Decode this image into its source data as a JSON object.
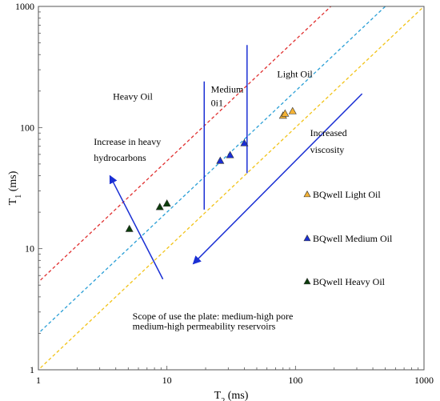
{
  "chart_data": {
    "type": "scatter",
    "xscale": "log",
    "yscale": "log",
    "xlim": [
      1,
      1000
    ],
    "ylim": [
      1,
      1000
    ],
    "grid": false,
    "legend_position": "right",
    "xlabel_base": "T",
    "xlabel_sub": "2",
    "xlabel_unit": " (ms)",
    "ylabel_base": "T",
    "ylabel_sub": "1",
    "ylabel_unit": " (ms)",
    "xticks": [
      {
        "value": 1,
        "label": "1"
      },
      {
        "value": 10,
        "label": "10"
      },
      {
        "value": 100,
        "label": "100"
      },
      {
        "value": 1000,
        "label": "1000"
      }
    ],
    "yticks": [
      {
        "value": 1,
        "label": "1"
      },
      {
        "value": 10,
        "label": "10"
      },
      {
        "value": 100,
        "label": "100"
      },
      {
        "value": 1000,
        "label": "1000"
      }
    ],
    "series": [
      {
        "name": "BQwell Light Oil",
        "color": "#f4b234",
        "points": [
          [
            80,
            125
          ],
          [
            83,
            130
          ],
          [
            95,
            136
          ]
        ]
      },
      {
        "name": "BQwell Medium Oil",
        "color": "#1a2fd4",
        "points": [
          [
            26,
            53
          ],
          [
            31,
            59
          ],
          [
            40,
            74
          ]
        ]
      },
      {
        "name": "BQwell Heavy Oil",
        "color": "#0b3d0b",
        "points": [
          [
            5.1,
            14.5
          ],
          [
            8.8,
            22
          ],
          [
            10,
            23.5
          ]
        ]
      }
    ],
    "ratio_lines": [
      {
        "ratio": 5.3,
        "color": "#e03030"
      },
      {
        "ratio": 2.0,
        "color": "#2a9fd6"
      },
      {
        "ratio": 1.0,
        "color": "#f2c318"
      }
    ],
    "boundary_lines": [
      {
        "x": [
          19.5,
          19.5
        ],
        "y": [
          21,
          240
        ],
        "color": "#1a2fd4"
      },
      {
        "x": [
          42,
          42
        ],
        "y": [
          42,
          480
        ],
        "color": "#1a2fd4"
      }
    ],
    "arrows": [
      {
        "from": [
          9.3,
          5.6
        ],
        "to": [
          3.6,
          40
        ],
        "color": "#1a2fd4"
      },
      {
        "from": [
          330,
          190
        ],
        "to": [
          16,
          7.5
        ],
        "color": "#1a2fd4"
      }
    ],
    "annotations": [
      {
        "text": "Light Oil",
        "x": 72,
        "y": 260
      },
      {
        "text": "Heavy Oil",
        "x": 3.8,
        "y": 170
      },
      {
        "text": "Medium",
        "x": 22,
        "y": 195
      },
      {
        "text": "0i1",
        "x": 22,
        "y": 150
      },
      {
        "text": "Increase in heavy",
        "x": 2.7,
        "y": 72
      },
      {
        "text": "hydrocarbons",
        "x": 2.7,
        "y": 53
      },
      {
        "text": "Increased",
        "x": 130,
        "y": 85
      },
      {
        "text": "viscosity",
        "x": 130,
        "y": 62
      },
      {
        "text": "Scope of use the plate: medium-high pore",
        "x": 5.4,
        "y": 2.6
      },
      {
        "text": "medium-high permeability reservoirs",
        "x": 5.4,
        "y": 2.15
      }
    ]
  }
}
